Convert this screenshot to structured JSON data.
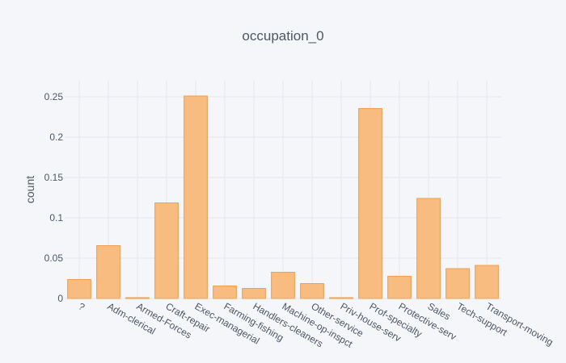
{
  "chart_data": {
    "type": "bar",
    "title": "occupation_0",
    "xlabel": "",
    "ylabel": "count",
    "categories": [
      "?",
      "Adm-clerical",
      "Armed-Forces",
      "Craft-repair",
      "Exec-managerial",
      "Farming-fishing",
      "Handlers-cleaners",
      "Machine-op-inspct",
      "Other-service",
      "Priv-house-serv",
      "Prof-specialty",
      "Protective-serv",
      "Sales",
      "Tech-support",
      "Transport-moving"
    ],
    "values": [
      0.0235,
      0.0655,
      0.001,
      0.1185,
      0.251,
      0.0155,
      0.0125,
      0.0325,
      0.0185,
      0.001,
      0.2355,
      0.0275,
      0.124,
      0.037,
      0.041
    ],
    "ylim": [
      0,
      0.27
    ],
    "yticks": [
      0,
      0.05,
      0.1,
      0.15,
      0.2,
      0.25
    ],
    "ytick_labels": [
      "0",
      "0.05",
      "0.1",
      "0.15",
      "0.2",
      "0.25"
    ],
    "grid": true,
    "colors": {
      "bar_fill": "#f8bc80",
      "bar_stroke": "#f0a050",
      "background": "#f5f6f9",
      "grid": "#e4e7ee",
      "text": "#4d5663"
    }
  }
}
